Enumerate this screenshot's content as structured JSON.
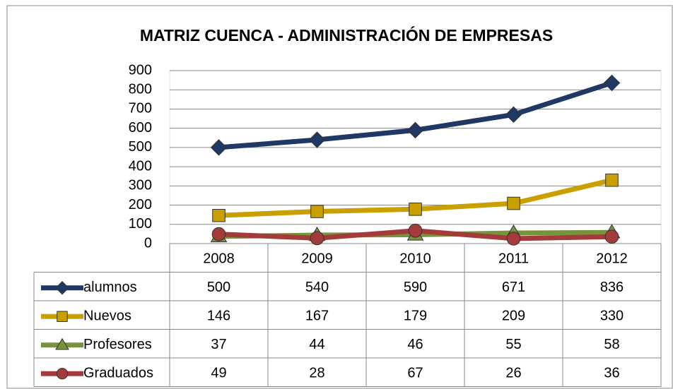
{
  "chart_data": {
    "type": "line",
    "title": "MATRIZ CUENCA - ADMINISTRACIÓN DE EMPRESAS",
    "categories": [
      "2008",
      "2009",
      "2010",
      "2011",
      "2012"
    ],
    "series": [
      {
        "name": "alumnos",
        "color": "#1f3864",
        "marker": "diamond",
        "values": [
          500,
          540,
          590,
          671,
          836
        ]
      },
      {
        "name": "Nuevos",
        "color": "#c9a000",
        "marker": "square",
        "values": [
          146,
          167,
          179,
          209,
          330
        ]
      },
      {
        "name": "Profesores",
        "color": "#77933c",
        "marker": "triangle",
        "values": [
          37,
          44,
          46,
          55,
          58
        ]
      },
      {
        "name": "Graduados",
        "color": "#a33b3b",
        "marker": "circle",
        "values": [
          49,
          28,
          67,
          26,
          36
        ]
      }
    ],
    "ylim": [
      0,
      900
    ],
    "yticks": [
      0,
      100,
      200,
      300,
      400,
      500,
      600,
      700,
      800,
      900
    ],
    "grid": true,
    "data_table": true
  }
}
